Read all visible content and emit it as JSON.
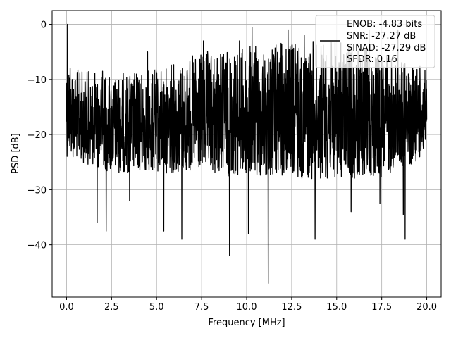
{
  "chart_data": {
    "type": "line",
    "title": "",
    "xlabel": "Frequency [MHz]",
    "ylabel": "PSD [dB]",
    "xlim": [
      -0.8,
      20.8
    ],
    "ylim": [
      -49.5,
      2.5
    ],
    "xticks": [
      0.0,
      2.5,
      5.0,
      7.5,
      10.0,
      12.5,
      15.0,
      17.5,
      20.0
    ],
    "xtick_labels": [
      "0.0",
      "2.5",
      "5.0",
      "7.5",
      "10.0",
      "12.5",
      "15.0",
      "17.5",
      "20.0"
    ],
    "yticks": [
      0,
      -10,
      -20,
      -30,
      -40
    ],
    "ytick_labels": [
      "0",
      "−10",
      "−20",
      "−30",
      "−40"
    ],
    "grid": true,
    "legend_position": "top-right",
    "series": [
      {
        "color": "#000000",
        "x_range": [
          0.0,
          20.0
        ],
        "envelope": {
          "upper": [
            [
              0.0,
              -3
            ],
            [
              0.5,
              -8
            ],
            [
              2.5,
              -9
            ],
            [
              5.0,
              -8
            ],
            [
              7.5,
              -5
            ],
            [
              10.0,
              -4
            ],
            [
              12.5,
              -3
            ],
            [
              15.0,
              -3
            ],
            [
              17.5,
              -5
            ],
            [
              20.0,
              -8
            ]
          ],
          "lower": [
            [
              0.0,
              -24
            ],
            [
              2.5,
              -27
            ],
            [
              5.0,
              -27
            ],
            [
              7.5,
              -27
            ],
            [
              10.0,
              -28
            ],
            [
              12.5,
              -28
            ],
            [
              15.0,
              -28
            ],
            [
              17.5,
              -28
            ],
            [
              20.0,
              -24
            ]
          ]
        },
        "peaks_up": [
          [
            0.05,
            0.0
          ],
          [
            2.0,
            -8.5
          ],
          [
            4.5,
            -5
          ],
          [
            7.6,
            -3
          ],
          [
            9.6,
            -3
          ],
          [
            10.1,
            -1.5
          ],
          [
            10.3,
            -0.5
          ],
          [
            12.3,
            -1
          ],
          [
            13.2,
            -2
          ],
          [
            16.8,
            -1
          ],
          [
            18.4,
            -1
          ]
        ],
        "peaks_down": [
          [
            1.7,
            -36
          ],
          [
            2.2,
            -37.5
          ],
          [
            3.5,
            -32
          ],
          [
            5.4,
            -37.5
          ],
          [
            6.4,
            -39
          ],
          [
            9.05,
            -42
          ],
          [
            10.1,
            -38
          ],
          [
            11.2,
            -47
          ],
          [
            13.8,
            -39
          ],
          [
            15.8,
            -34
          ],
          [
            17.4,
            -32.5
          ],
          [
            18.7,
            -34.5
          ],
          [
            18.8,
            -39
          ]
        ]
      }
    ]
  },
  "legend": {
    "lines": [
      "ENOB: -4.83 bits",
      "SNR: -27.27 dB",
      "SINAD: -27.29 dB",
      "SFDR: 0.16"
    ]
  }
}
